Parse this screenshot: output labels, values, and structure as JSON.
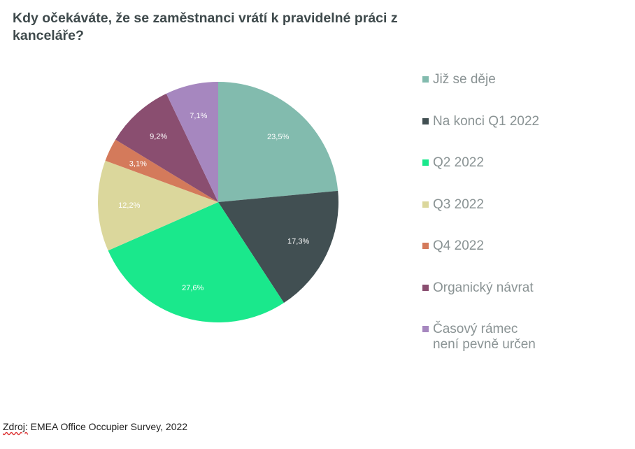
{
  "title": "Kdy očekáváte, že se zaměstnanci vrátí k pravidelné práci z kanceláře?",
  "source": {
    "label": "Zdroj:",
    "text": " EMEA Office Occupier Survey, 2022"
  },
  "chart_data": {
    "type": "pie",
    "title": "Kdy očekáváte, že se zaměstnanci vrátí k pravidelné práci z kanceláře?",
    "legend_position": "right",
    "slices": [
      {
        "label": "Již se děje",
        "value": 23.5,
        "value_label": "23,5%",
        "color": "#82bbae"
      },
      {
        "label": "Na konci Q1 2022",
        "value": 17.3,
        "value_label": "17,3%",
        "color": "#414f52"
      },
      {
        "label": "Q2 2022",
        "value": 27.6,
        "value_label": "27,6%",
        "color": "#1ae88c"
      },
      {
        "label": "Q3 2022",
        "value": 12.2,
        "value_label": "12,2%",
        "color": "#dbd79c"
      },
      {
        "label": "Q4 2022",
        "value": 3.1,
        "value_label": "3,1%",
        "color": "#d47a5b"
      },
      {
        "label": "Organický návrat",
        "value": 9.2,
        "value_label": "9,2%",
        "color": "#8a4e70"
      },
      {
        "label": "Časový rámec není pevně určen",
        "value": 7.1,
        "value_label": "7,1%",
        "color": "#a687bf"
      }
    ]
  }
}
